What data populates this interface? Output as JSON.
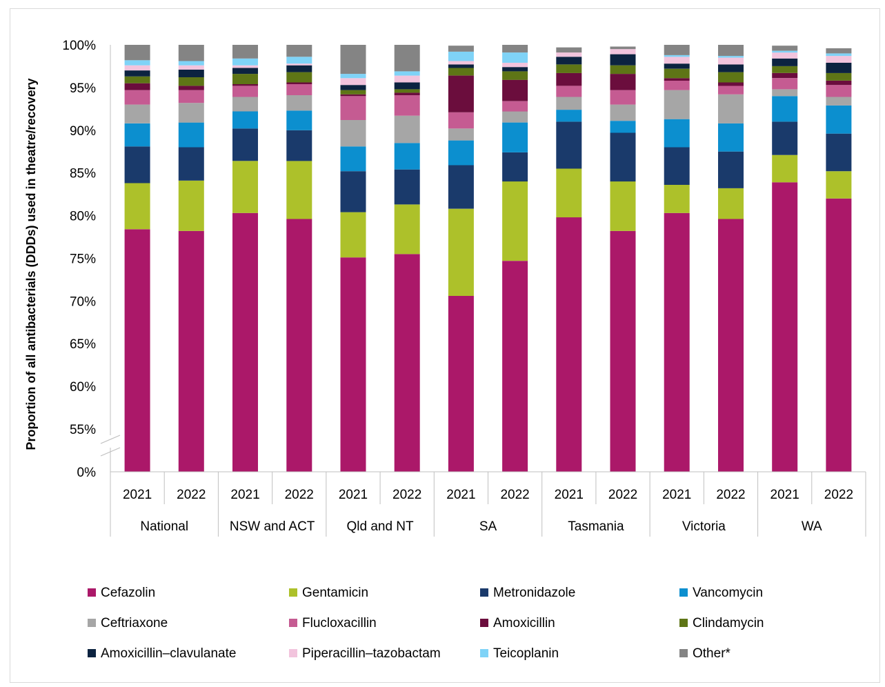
{
  "chart_data": {
    "type": "bar",
    "stacked": true,
    "title": "",
    "xlabel": "",
    "ylabel": "Proportion of all antibacterials (DDDs) used in theatre/recovery",
    "y_axis_break": true,
    "y_ticks": [
      "0%",
      "55%",
      "60%",
      "65%",
      "70%",
      "75%",
      "80%",
      "85%",
      "90%",
      "95%",
      "100%"
    ],
    "ylim": [
      50,
      100
    ],
    "groups": [
      {
        "name": "National",
        "years": [
          "2021",
          "2022"
        ]
      },
      {
        "name": "NSW and ACT",
        "years": [
          "2021",
          "2022"
        ]
      },
      {
        "name": "Qld and NT",
        "years": [
          "2021",
          "2022"
        ]
      },
      {
        "name": "SA",
        "years": [
          "2021",
          "2022"
        ]
      },
      {
        "name": "Tasmania",
        "years": [
          "2021",
          "2022"
        ]
      },
      {
        "name": "Victoria",
        "years": [
          "2021",
          "2022"
        ]
      },
      {
        "name": "WA",
        "years": [
          "2021",
          "2022"
        ]
      }
    ],
    "legend_position": "bottom",
    "series": [
      {
        "name": "Cefazolin",
        "color": "#AB1869",
        "values": [
          78.4,
          78.2,
          80.3,
          79.6,
          75.1,
          75.5,
          70.6,
          74.7,
          79.8,
          78.2,
          80.3,
          79.6,
          83.9,
          82.0
        ]
      },
      {
        "name": "Gentamicin",
        "color": "#ADC12A",
        "values": [
          5.4,
          5.9,
          6.1,
          6.8,
          5.3,
          5.8,
          10.2,
          9.3,
          5.7,
          5.8,
          3.3,
          3.6,
          3.2,
          3.2
        ]
      },
      {
        "name": "Metronidazole",
        "color": "#1A3A6B",
        "values": [
          4.3,
          3.9,
          3.8,
          3.6,
          4.8,
          4.1,
          5.1,
          3.4,
          5.5,
          5.7,
          4.4,
          4.3,
          3.9,
          4.4
        ]
      },
      {
        "name": "Vancomycin",
        "color": "#0C8FCF",
        "values": [
          2.7,
          2.9,
          2.0,
          2.3,
          2.9,
          3.1,
          2.9,
          3.5,
          1.4,
          1.4,
          3.3,
          3.3,
          3.0,
          3.3
        ]
      },
      {
        "name": "Ceftriaxone",
        "color": "#A6A6A6",
        "values": [
          2.2,
          2.3,
          1.7,
          1.8,
          3.1,
          3.2,
          1.4,
          1.3,
          1.5,
          1.9,
          3.4,
          3.4,
          0.8,
          1.0
        ]
      },
      {
        "name": "Flucloxacillin",
        "color": "#C55B92",
        "values": [
          1.7,
          1.5,
          1.3,
          1.3,
          2.8,
          2.4,
          1.9,
          1.2,
          1.3,
          1.7,
          1.1,
          1.0,
          1.3,
          1.4
        ]
      },
      {
        "name": "Amoxicillin",
        "color": "#6B0D3D",
        "values": [
          0.8,
          0.5,
          0.2,
          0.2,
          0.2,
          0.3,
          4.3,
          2.5,
          1.5,
          1.9,
          0.3,
          0.4,
          0.6,
          0.5
        ]
      },
      {
        "name": "Clindamycin",
        "color": "#5E7516",
        "values": [
          0.8,
          1.0,
          1.2,
          1.2,
          0.5,
          0.4,
          0.9,
          1.0,
          1.0,
          1.0,
          1.1,
          1.2,
          0.8,
          0.9
        ]
      },
      {
        "name": "Amoxicillin–clavulanate",
        "color": "#0C2340",
        "values": [
          0.7,
          0.9,
          0.7,
          0.8,
          0.6,
          0.8,
          0.4,
          0.5,
          0.9,
          1.3,
          0.6,
          0.9,
          0.9,
          1.2
        ]
      },
      {
        "name": "Piperacillin–tazobactam",
        "color": "#F2C4DD",
        "values": [
          0.6,
          0.5,
          0.3,
          0.2,
          0.8,
          0.8,
          0.4,
          0.5,
          0.5,
          0.6,
          0.8,
          0.8,
          0.7,
          0.8
        ]
      },
      {
        "name": "Teicoplanin",
        "color": "#7FD3F7",
        "values": [
          0.6,
          0.5,
          0.8,
          0.8,
          0.5,
          0.5,
          1.1,
          1.2,
          0.0,
          0.0,
          0.2,
          0.2,
          0.2,
          0.3
        ]
      },
      {
        "name": "Other*",
        "color": "#848484",
        "values": [
          1.8,
          1.9,
          1.6,
          1.5,
          3.4,
          3.1,
          0.7,
          0.9,
          0.6,
          0.3,
          1.2,
          1.3,
          0.6,
          0.6
        ]
      }
    ]
  }
}
